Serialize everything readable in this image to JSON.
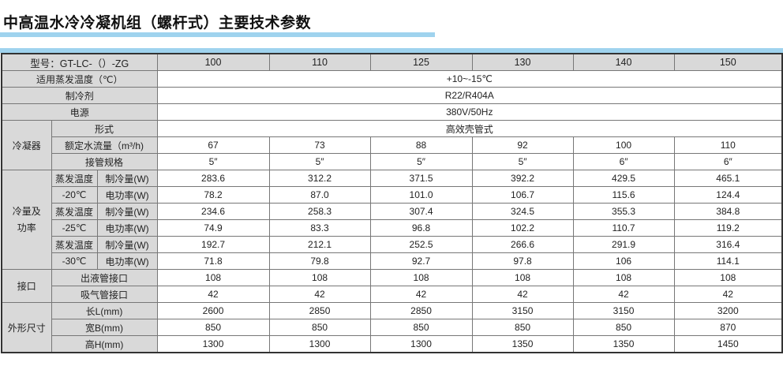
{
  "title": "中高温水冷冷凝机组（螺杆式）主要技术参数",
  "colors": {
    "accent_bar": "#9fd3ee",
    "label_bg": "#d9d9d9"
  },
  "table": {
    "model_label": "型号：GT-LC-（）-ZG",
    "models": [
      "100",
      "110",
      "125",
      "130",
      "140",
      "150"
    ],
    "evap_temp_label": "适用蒸发温度（℃）",
    "evap_temp_value": "+10~-15℃",
    "refrigerant_label": "制冷剂",
    "refrigerant_value": "R22/R404A",
    "power_label": "电源",
    "power_value": "380V/50Hz",
    "condenser": {
      "group_label": "冷凝器",
      "type_label": "形式",
      "type_value": "高效壳管式",
      "flow_label": "额定水流量（m³/h)",
      "flow_values": [
        "67",
        "73",
        "88",
        "92",
        "100",
        "110"
      ],
      "pipe_label": "接管规格",
      "pipe_values": [
        "5″",
        "5″",
        "5″",
        "5″",
        "6″",
        "6″"
      ]
    },
    "capacity": {
      "group_label": "冷量及功率",
      "group_label_lines": [
        "冷量及",
        "功率"
      ],
      "cooling_label": "制冷量(W)",
      "power_label": "电功率(W)",
      "evap_label": "蒸发温度",
      "conditions": [
        {
          "temp": "-20℃",
          "cooling": [
            "283.6",
            "312.2",
            "371.5",
            "392.2",
            "429.5",
            "465.1"
          ],
          "power": [
            "78.2",
            "87.0",
            "101.0",
            "106.7",
            "115.6",
            "124.4"
          ]
        },
        {
          "temp": "-25℃",
          "cooling": [
            "234.6",
            "258.3",
            "307.4",
            "324.5",
            "355.3",
            "384.8"
          ],
          "power": [
            "74.9",
            "83.3",
            "96.8",
            "102.2",
            "110.7",
            "119.2"
          ]
        },
        {
          "temp": "-30℃",
          "cooling": [
            "192.7",
            "212.1",
            "252.5",
            "266.6",
            "291.9",
            "316.4"
          ],
          "power": [
            "71.8",
            "79.8",
            "92.7",
            "97.8",
            "106",
            "114.1"
          ]
        }
      ]
    },
    "ports": {
      "group_label": "接口",
      "liquid_label": "出液管接口",
      "liquid_values": [
        "108",
        "108",
        "108",
        "108",
        "108",
        "108"
      ],
      "suction_label": "吸气管接口",
      "suction_values": [
        "42",
        "42",
        "42",
        "42",
        "42",
        "42"
      ]
    },
    "dimensions": {
      "group_label": "外形尺寸",
      "length_label": "长L(mm)",
      "length_values": [
        "2600",
        "2850",
        "2850",
        "3150",
        "3150",
        "3200"
      ],
      "width_label": "宽B(mm)",
      "width_values": [
        "850",
        "850",
        "850",
        "850",
        "850",
        "870"
      ],
      "height_label": "高H(mm)",
      "height_values": [
        "1300",
        "1300",
        "1300",
        "1350",
        "1350",
        "1450"
      ]
    }
  }
}
